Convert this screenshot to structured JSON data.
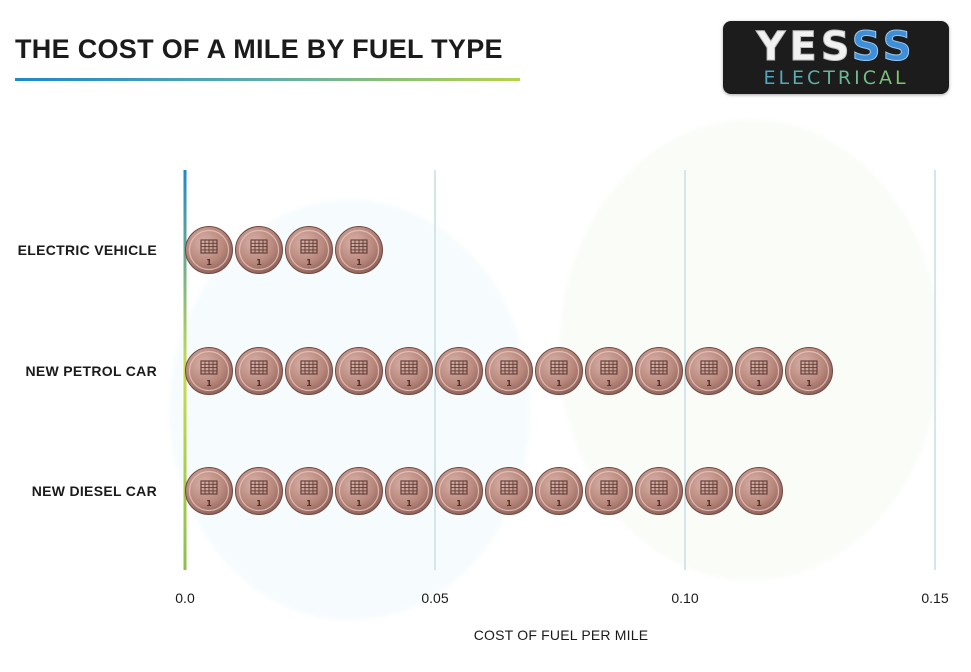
{
  "title": "THE COST OF A MILE BY FUEL TYPE",
  "logo": {
    "main_white": "YES",
    "main_blue": "SS",
    "sub": "ELECTRICAL"
  },
  "colors": {
    "accent_blue": "#1e88c8",
    "accent_green": "#b5d34a",
    "coin": "#b98a80"
  },
  "chart_data": {
    "type": "bar",
    "title": "THE COST OF A MILE BY FUEL TYPE",
    "orientation": "horizontal",
    "categories": [
      "ELECTRIC VEHICLE",
      "NEW PETROL CAR",
      "NEW DIESEL CAR"
    ],
    "values": [
      0.04,
      0.13,
      0.12
    ],
    "xlabel": "COST OF FUEL PER MILE",
    "ylabel": "",
    "xlim": [
      0,
      0.15
    ],
    "x_ticks": [
      "0.0",
      "0.05",
      "0.10",
      "0.15"
    ],
    "x_tick_values": [
      0,
      0.05,
      0.1,
      0.15
    ],
    "unit_per_icon": 0.01,
    "icon": "one-penny-coin",
    "grid": true
  }
}
